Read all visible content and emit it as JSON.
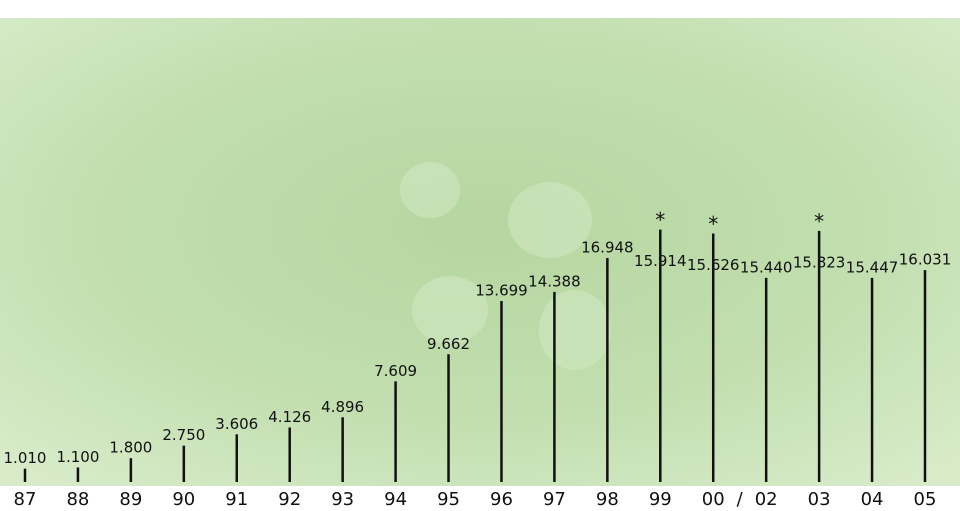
{
  "chart_data": {
    "type": "bar",
    "categories": [
      "87",
      "88",
      "89",
      "90",
      "91",
      "92",
      "93",
      "94",
      "95",
      "96",
      "97",
      "98",
      "99",
      "00",
      "02",
      "03",
      "04",
      "05"
    ],
    "values": [
      1.01,
      1.1,
      1.8,
      2.75,
      3.606,
      4.126,
      4.896,
      7.609,
      9.662,
      13.699,
      14.388,
      16.948,
      15.914,
      15.626,
      15.44,
      15.823,
      15.447,
      16.031
    ],
    "value_labels": [
      "1.010",
      "1.100",
      "1.800",
      "2.750",
      "3.606",
      "4.126",
      "4.896",
      "7.609",
      "9.662",
      "13.699",
      "14.388",
      "16.948",
      "15.914",
      "15.626",
      "15.440",
      "15.823",
      "15.447",
      "16.031"
    ],
    "color": "#111111",
    "annotations": [
      {
        "text": "*",
        "category": "99"
      },
      {
        "text": "*",
        "category": "00"
      },
      {
        "text": "*",
        "category": "03"
      }
    ],
    "x_separator": {
      "text": "/",
      "between": [
        "00",
        "02"
      ]
    }
  }
}
